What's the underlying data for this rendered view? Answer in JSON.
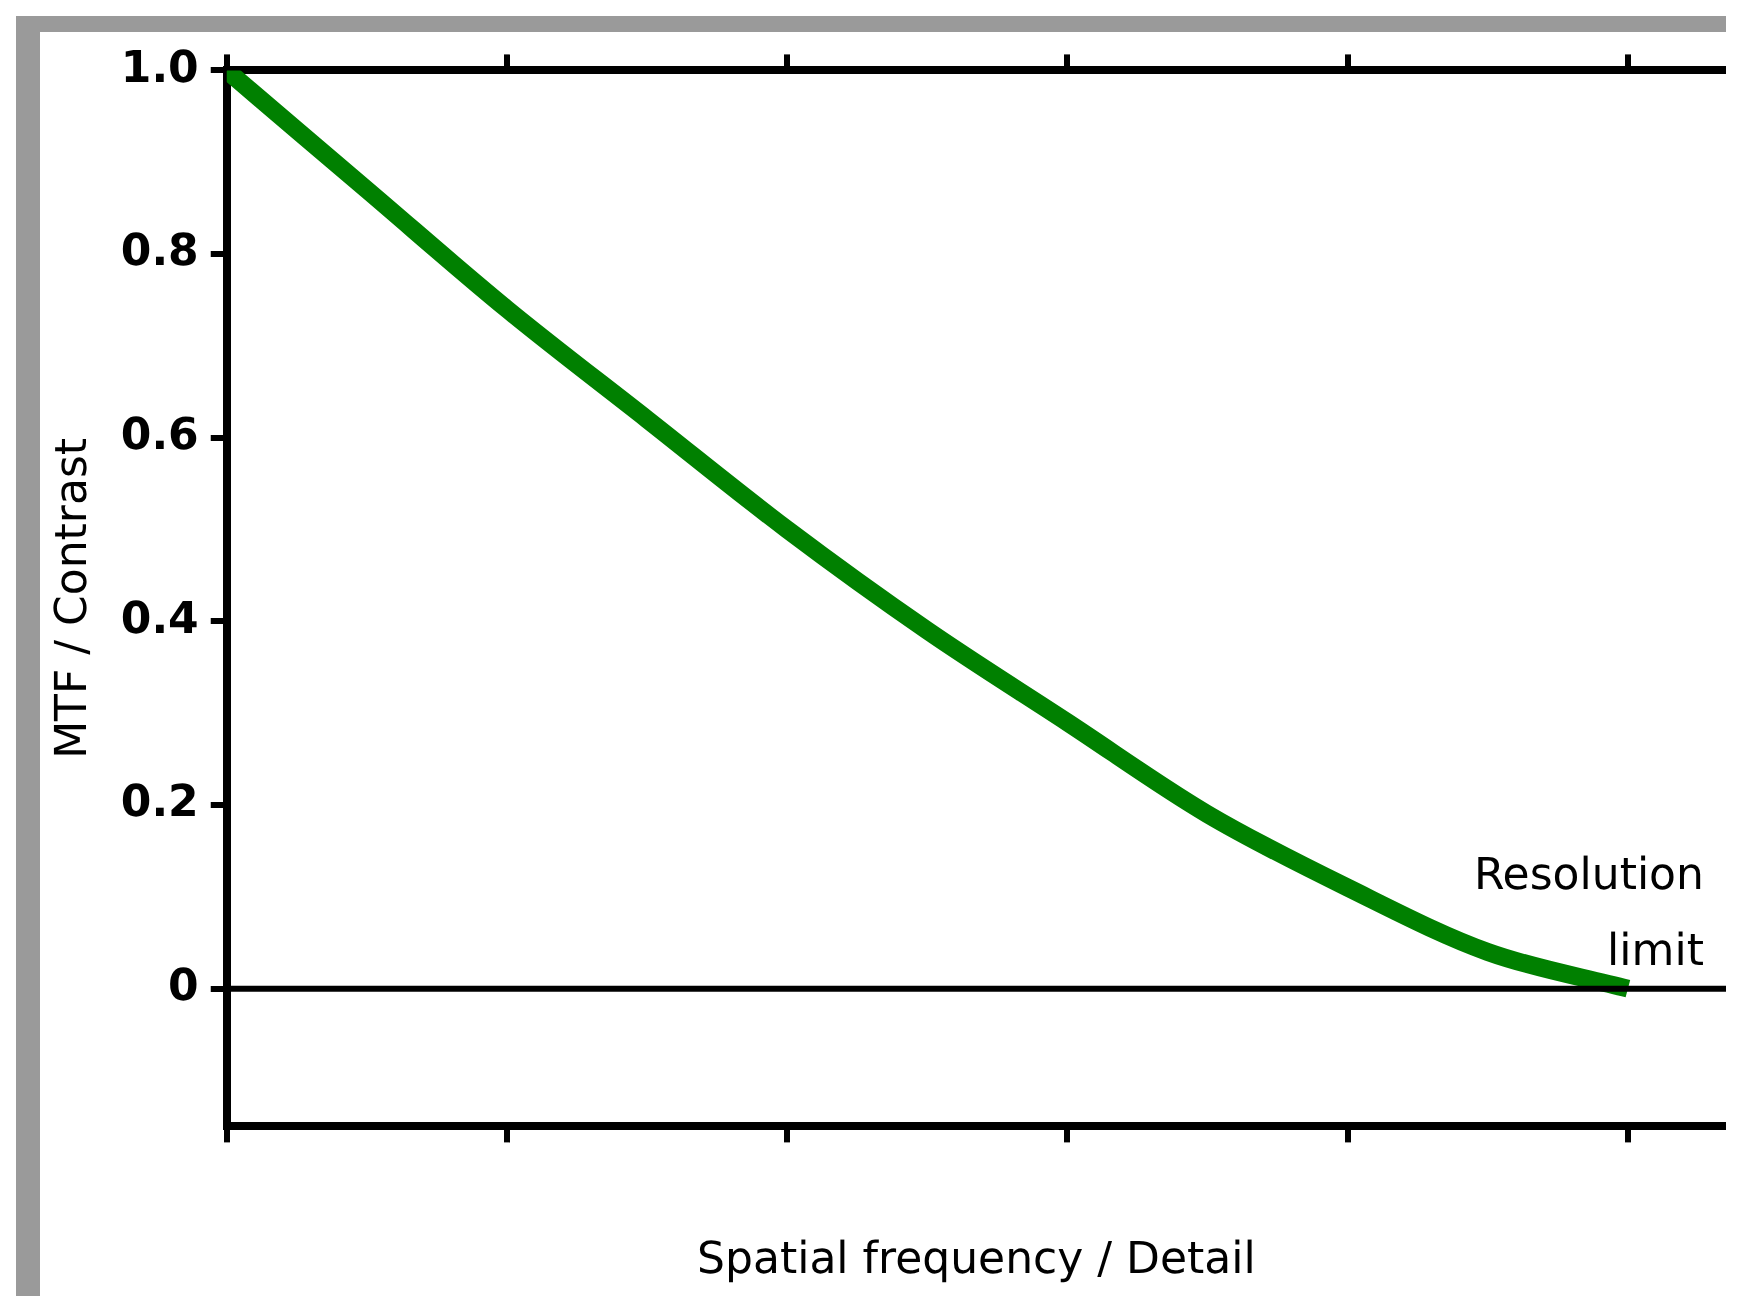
{
  "chart_data": {
    "type": "line",
    "xlabel": "Spatial frequency / Detail",
    "ylabel": "MTF / Contrast",
    "categories": [
      null,
      null,
      null,
      null,
      null,
      null,
      null,
      null,
      null,
      null,
      null
    ],
    "series": [
      {
        "color": "#008000",
        "values": [
          1,
          0.87,
          0.74,
          0.62,
          0.5,
          0.39,
          0.29,
          0.19,
          0.11,
          0.04,
          0
        ]
      }
    ],
    "ylim": [
      -0.15,
      1
    ],
    "yticks": [
      0,
      0.2,
      0.4,
      0.6,
      0.8,
      {
        "value": 1,
        "label": "1.0"
      }
    ],
    "ref_lines": [
      {
        "axis": "y",
        "value": 0,
        "color": "#000000"
      }
    ],
    "annotations": [
      "Resolution limit"
    ],
    "grid": false,
    "legend": false,
    "marker": "none",
    "line_style": "solid"
  }
}
